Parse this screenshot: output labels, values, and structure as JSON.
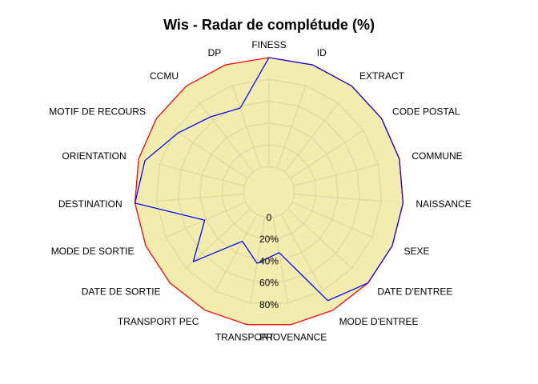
{
  "chart_data": {
    "type": "radar",
    "title": "Wis - Radar de complétude (%)",
    "categories": [
      "FINESS",
      "ID",
      "EXTRACT",
      "CODE POSTAL",
      "COMMUNE",
      "NAISSANCE",
      "SEXE",
      "DATE D'ENTREE",
      "MODE D'ENTREE",
      "PROVENANCE",
      "TRANSPORT",
      "TRANSPORT PEC",
      "DATE DE SORTIE",
      "MODE DE SORTIE",
      "DESTINATION",
      "ORIENTATION",
      "MOTIF DE RECOURS",
      "CCMU",
      "DP"
    ],
    "radial_ticks": [
      "0",
      "20%",
      "40%",
      "60%",
      "80%"
    ],
    "rlim": [
      0,
      100
    ],
    "series": [
      {
        "color": "#ff0000",
        "fill": "#f2eaa6",
        "values": [
          100,
          100,
          100,
          100,
          100,
          100,
          100,
          100,
          100,
          100,
          100,
          100,
          100,
          100,
          100,
          100,
          100,
          100,
          100
        ]
      },
      {
        "color": "#0000ff",
        "fill": "none",
        "values": [
          100,
          100,
          100,
          100,
          100,
          100,
          100,
          100,
          90,
          33,
          43,
          28,
          71,
          41,
          100,
          94,
          76,
          64,
          58
        ]
      }
    ]
  }
}
